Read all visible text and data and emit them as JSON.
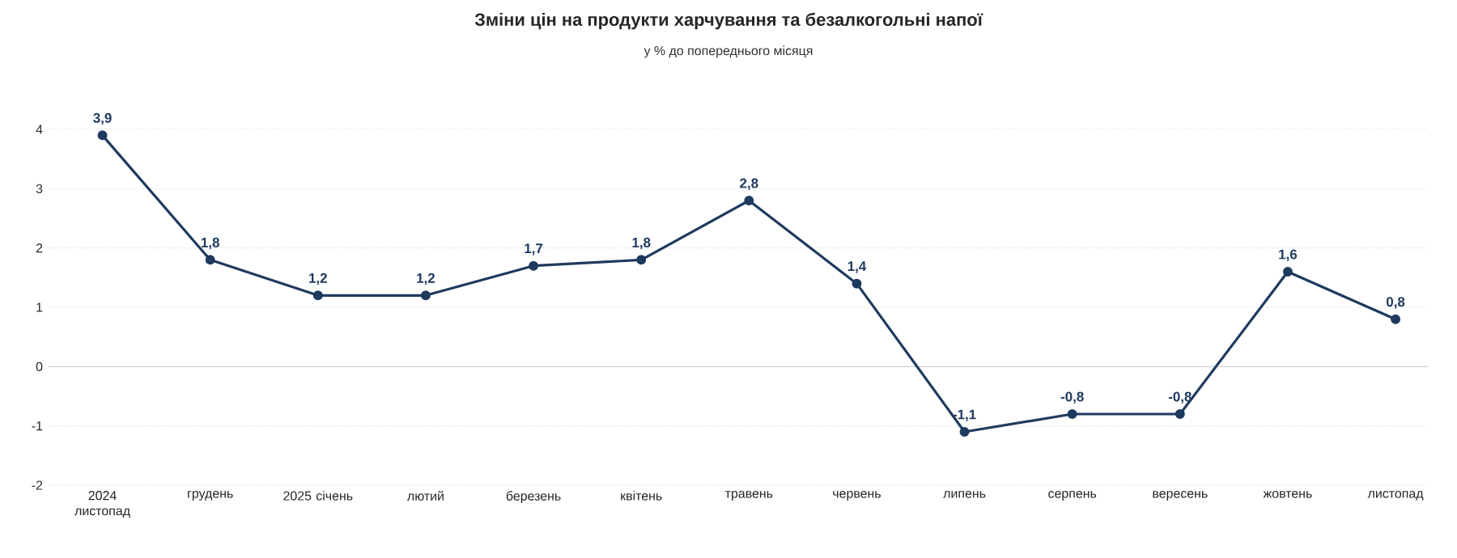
{
  "chart_data": {
    "type": "line",
    "title": "Зміни цін на продукти харчування та безалкогольні напої",
    "subtitle": "у % до попереднього місяця",
    "categories": [
      "2024 листопад",
      "грудень",
      "2025 січень",
      "лютий",
      "березень",
      "квітень",
      "травень",
      "червень",
      "липень",
      "серпень",
      "вересень",
      "жовтень",
      "листопад"
    ],
    "values": [
      3.9,
      1.8,
      1.2,
      1.2,
      1.7,
      1.8,
      2.8,
      1.4,
      -1.1,
      -0.8,
      -0.8,
      1.6,
      0.8
    ],
    "value_labels": [
      "3,9",
      "1,8",
      "1,2",
      "1,2",
      "1,7",
      "1,8",
      "2,8",
      "1,4",
      "-1,1",
      "-0,8",
      "-0,8",
      "1,6",
      "0,8"
    ],
    "color": "#1f3a5f",
    "marker": "circle",
    "line_style": "solid",
    "ylim": [
      -2,
      4
    ],
    "yticks": [
      -2,
      -1,
      0,
      1,
      2,
      3,
      4
    ],
    "grid": "y"
  }
}
